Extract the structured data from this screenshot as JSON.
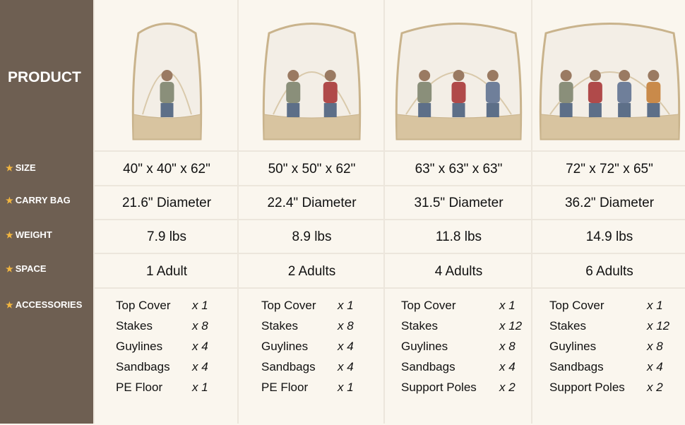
{
  "sidebar": {
    "title": "PRODUCT",
    "rows": [
      {
        "label": "SIZE",
        "icon": "star-icon"
      },
      {
        "label": "CARRY BAG",
        "icon": "star-icon"
      },
      {
        "label": "WEIGHT",
        "icon": "star-icon"
      },
      {
        "label": "SPACE",
        "icon": "star-icon"
      },
      {
        "label": "ACCESSORIES",
        "icon": "star-icon"
      }
    ]
  },
  "colors": {
    "sidebar": "#6e5f52",
    "star": "#f2b640",
    "background": "#faf6ee",
    "tent_base": "#d8c4a0"
  },
  "products": [
    {
      "size": "40\" x 40\" x 62\"",
      "carry_bag": "21.6\" Diameter",
      "weight": "7.9 lbs",
      "space": "1 Adult",
      "accessories": [
        {
          "name": "Top Cover",
          "qty": "x 1"
        },
        {
          "name": "Stakes",
          "qty": "x 8"
        },
        {
          "name": "Guylines",
          "qty": "x 4"
        },
        {
          "name": "Sandbags",
          "qty": "x 4"
        },
        {
          "name": "PE Floor",
          "qty": "x 1"
        }
      ]
    },
    {
      "size": "50\" x 50\" x 62\"",
      "carry_bag": "22.4\" Diameter",
      "weight": "8.9 lbs",
      "space": "2 Adults",
      "accessories": [
        {
          "name": "Top Cover",
          "qty": "x 1"
        },
        {
          "name": "Stakes",
          "qty": "x 8"
        },
        {
          "name": "Guylines",
          "qty": "x 4"
        },
        {
          "name": "Sandbags",
          "qty": "x 4"
        },
        {
          "name": "PE Floor",
          "qty": "x 1"
        }
      ]
    },
    {
      "size": "63\" x 63\" x 63\"",
      "carry_bag": "31.5\" Diameter",
      "weight": "11.8 lbs",
      "space": "4 Adults",
      "accessories": [
        {
          "name": "Top Cover",
          "qty": "x 1"
        },
        {
          "name": "Stakes",
          "qty": "x 12"
        },
        {
          "name": "Guylines",
          "qty": "x 8"
        },
        {
          "name": "Sandbags",
          "qty": "x 4"
        },
        {
          "name": "Support Poles",
          "qty": "x 2"
        }
      ]
    },
    {
      "size": "72\" x 72\" x 65\"",
      "carry_bag": "36.2\" Diameter",
      "weight": "14.9 lbs",
      "space": "6 Adults",
      "accessories": [
        {
          "name": "Top Cover",
          "qty": "x 1"
        },
        {
          "name": "Stakes",
          "qty": "x 12"
        },
        {
          "name": "Guylines",
          "qty": "x 8"
        },
        {
          "name": "Sandbags",
          "qty": "x 4"
        },
        {
          "name": "Support Poles",
          "qty": "x 2"
        }
      ]
    }
  ]
}
